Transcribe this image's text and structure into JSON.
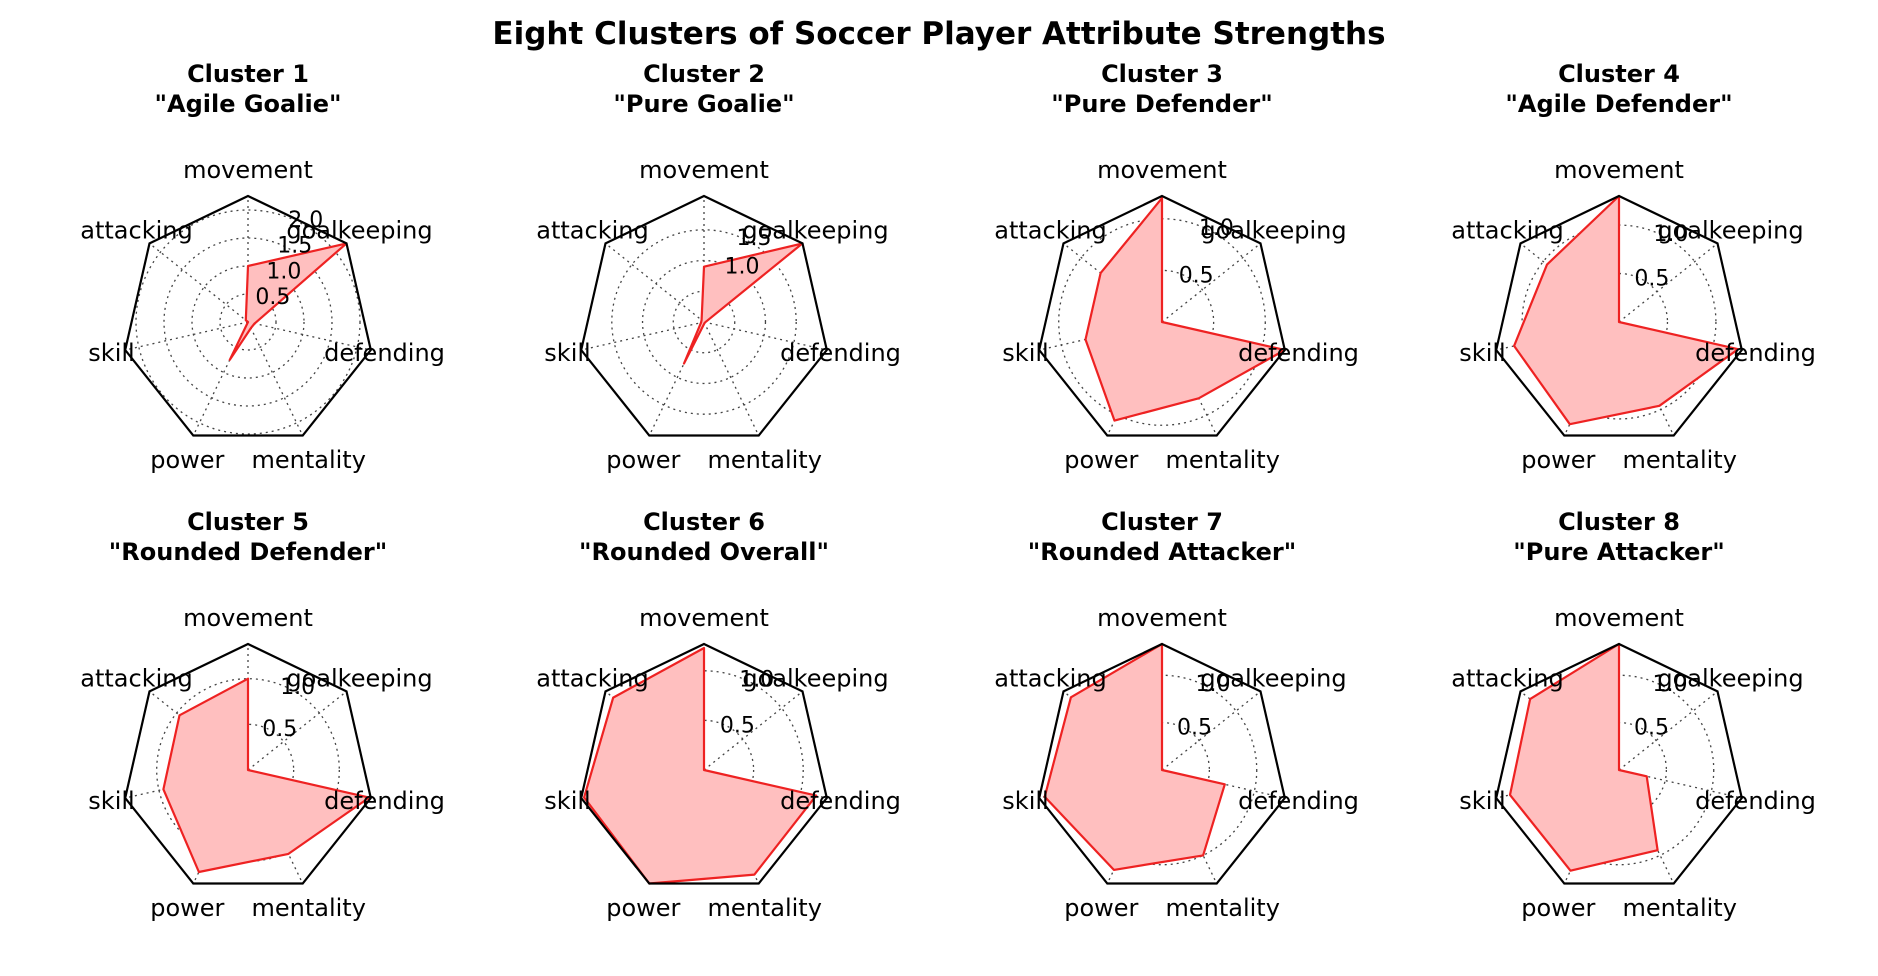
{
  "title": "Eight Clusters of Soccer Player Attribute Strengths",
  "chart_data": [
    {
      "type": "radar",
      "title": "Cluster 1",
      "subtitle": "\"Agile Goalie\"",
      "axes": [
        "movement",
        "goalkeeping",
        "defending",
        "mentality",
        "power",
        "skill",
        "attacking"
      ],
      "values": [
        1.0,
        2.25,
        0.12,
        0.12,
        0.75,
        0.0,
        0.05
      ],
      "rmax": 2.25,
      "ticks": [
        0.5,
        1.0,
        1.5,
        2.0
      ],
      "tick_labels": [
        "0.5",
        "1.0",
        "1.5",
        "2.0"
      ],
      "grid": true
    },
    {
      "type": "radar",
      "title": "Cluster 2",
      "subtitle": "\"Pure Goalie\"",
      "axes": [
        "movement",
        "goalkeeping",
        "defending",
        "mentality",
        "power",
        "skill",
        "attacking"
      ],
      "values": [
        0.9,
        2.05,
        0.02,
        0.02,
        0.75,
        0.05,
        0.05
      ],
      "rmax": 2.05,
      "ticks": [
        0.5,
        1.0,
        1.5
      ],
      "tick_labels": [
        "",
        "1.0",
        "1.5"
      ],
      "grid": true
    },
    {
      "type": "radar",
      "title": "Cluster 3",
      "subtitle": "\"Pure Defender\"",
      "axes": [
        "movement",
        "goalkeeping",
        "defending",
        "mentality",
        "power",
        "skill",
        "attacking"
      ],
      "values": [
        1.2,
        0.0,
        1.22,
        0.82,
        1.06,
        0.76,
        0.76
      ],
      "rmax": 1.22,
      "ticks": [
        0.5,
        1.0
      ],
      "tick_labels": [
        "0.5",
        "1.0"
      ],
      "grid": true
    },
    {
      "type": "radar",
      "title": "Cluster 4",
      "subtitle": "\"Agile Defender\"",
      "axes": [
        "movement",
        "goalkeeping",
        "defending",
        "mentality",
        "power",
        "skill",
        "attacking"
      ],
      "values": [
        1.3,
        0.0,
        1.26,
        0.96,
        1.17,
        1.11,
        0.95
      ],
      "rmax": 1.3,
      "ticks": [
        0.5,
        1.0
      ],
      "tick_labels": [
        "0.5",
        "1.0"
      ],
      "grid": true
    },
    {
      "type": "radar",
      "title": "Cluster 5",
      "subtitle": "\"Rounded Defender\"",
      "axes": [
        "movement",
        "goalkeeping",
        "defending",
        "mentality",
        "power",
        "skill",
        "attacking"
      ],
      "values": [
        1.0,
        0.0,
        1.36,
        1.02,
        1.24,
        0.95,
        0.96
      ],
      "rmax": 1.38,
      "ticks": [
        0.5,
        1.0
      ],
      "tick_labels": [
        "0.5",
        "1.0"
      ],
      "grid": true
    },
    {
      "type": "radar",
      "title": "Cluster 6",
      "subtitle": "\"Rounded Overall\"",
      "axes": [
        "movement",
        "goalkeeping",
        "defending",
        "mentality",
        "power",
        "skill",
        "attacking"
      ],
      "values": [
        1.23,
        0.0,
        1.16,
        1.17,
        1.27,
        1.24,
        1.17
      ],
      "rmax": 1.27,
      "ticks": [
        0.5,
        1.0
      ],
      "tick_labels": [
        "0.5",
        "1.0"
      ],
      "grid": true
    },
    {
      "type": "radar",
      "title": "Cluster 7",
      "subtitle": "\"Rounded Attacker\"",
      "axes": [
        "movement",
        "goalkeeping",
        "defending",
        "mentality",
        "power",
        "skill",
        "attacking"
      ],
      "values": [
        1.33,
        0.0,
        0.68,
        1.0,
        1.17,
        1.27,
        1.23
      ],
      "rmax": 1.33,
      "ticks": [
        0.5,
        1.0
      ],
      "tick_labels": [
        "0.5",
        "1.0"
      ],
      "grid": true
    },
    {
      "type": "radar",
      "title": "Cluster 8",
      "subtitle": "\"Pure Attacker\"",
      "axes": [
        "movement",
        "goalkeeping",
        "defending",
        "mentality",
        "power",
        "skill",
        "attacking"
      ],
      "values": [
        1.33,
        0.0,
        0.3,
        0.94,
        1.18,
        1.18,
        1.2
      ],
      "rmax": 1.33,
      "ticks": [
        0.5,
        1.0
      ],
      "tick_labels": [
        "0.5",
        "1.0"
      ],
      "grid": true
    }
  ],
  "style": {
    "fill": "#ffbfbf",
    "line": "#ee2222",
    "frame": "#000000",
    "grid": "#444444"
  }
}
